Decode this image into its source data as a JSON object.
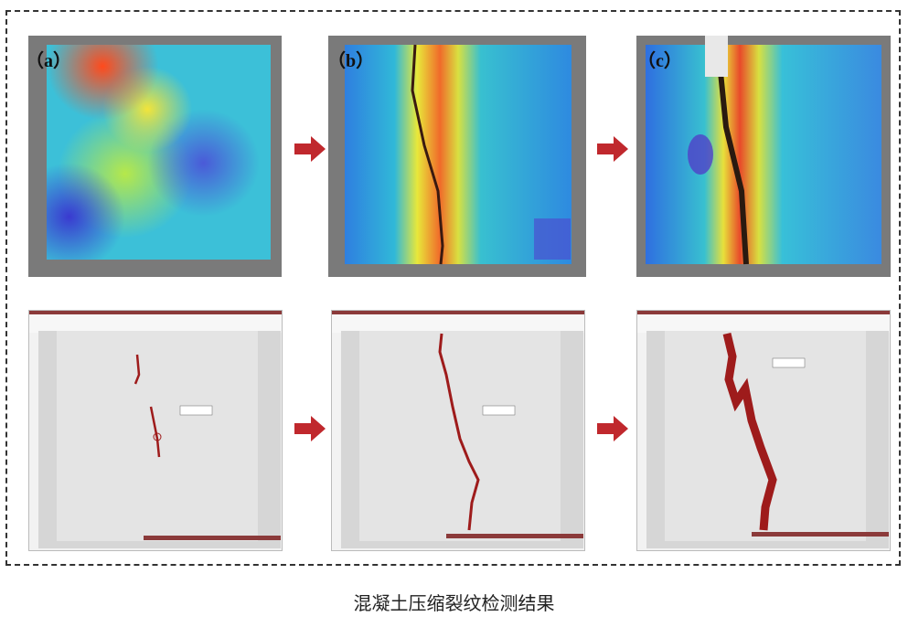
{
  "panels": {
    "a_label": "（a）",
    "b_label": "（b）",
    "c_label": "（c）"
  },
  "caption": "混凝土压缩裂纹检测结果",
  "colors": {
    "arrow": "#c0282d",
    "crack": "#9e1b1b",
    "frame": "#333333"
  }
}
